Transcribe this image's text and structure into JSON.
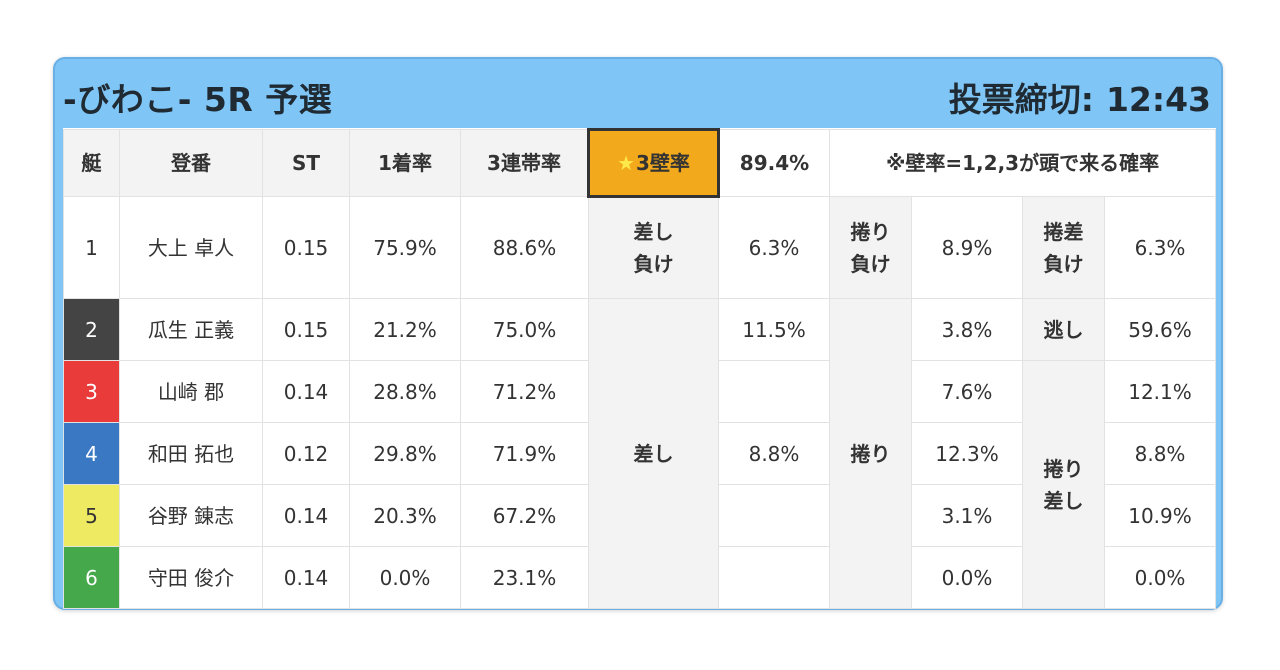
{
  "header": {
    "race_title": "-びわこ- 5R 予選",
    "deadline_label": "投票締切:",
    "deadline_time": "12:43"
  },
  "table": {
    "columns": {
      "boat": "艇",
      "name": "登番",
      "st": "ST",
      "first_rate": "1着率",
      "top3_rate": "3連帯率",
      "wall_rate_star": "★",
      "wall_rate_label": "3壁率",
      "wall_rate_value": "89.4%",
      "note": "※壁率=1,2,3が頭で来る確率"
    },
    "pattern_labels": {
      "sashi_make_1": "差し",
      "sashi_make_2": "負け",
      "makuri_make_1": "捲り",
      "makuri_make_2": "負け",
      "makurisashi_make_1": "捲差",
      "makurisashi_make_2": "負け",
      "nige": "逃し",
      "sashi": "差し",
      "makuri": "捲り",
      "makurisashi_1": "捲り",
      "makurisashi_2": "差し"
    },
    "rows": [
      {
        "boat": "1",
        "name": "大上 卓人",
        "st": "0.15",
        "first_rate": "75.9%",
        "top3_rate": "88.6%",
        "sashi_val": "6.3%",
        "makuri_val": "8.9%",
        "makurisashi_val": "6.3%"
      },
      {
        "boat": "2",
        "name": "瓜生 正義",
        "st": "0.15",
        "first_rate": "21.2%",
        "top3_rate": "75.0%",
        "sashi_val": "11.5%",
        "makuri_val": "3.8%",
        "makurisashi_val": "59.6%"
      },
      {
        "boat": "3",
        "name": "山崎 郡",
        "st": "0.14",
        "first_rate": "28.8%",
        "top3_rate": "71.2%",
        "sashi_val": "",
        "makuri_val": "7.6%",
        "makurisashi_val": "12.1%"
      },
      {
        "boat": "4",
        "name": "和田 拓也",
        "st": "0.12",
        "first_rate": "29.8%",
        "top3_rate": "71.9%",
        "sashi_val": "8.8%",
        "makuri_val": "12.3%",
        "makurisashi_val": "8.8%"
      },
      {
        "boat": "5",
        "name": "谷野 錬志",
        "st": "0.14",
        "first_rate": "20.3%",
        "top3_rate": "67.2%",
        "sashi_val": "",
        "makuri_val": "3.1%",
        "makurisashi_val": "10.9%"
      },
      {
        "boat": "6",
        "name": "守田 俊介",
        "st": "0.14",
        "first_rate": "0.0%",
        "top3_rate": "23.1%",
        "sashi_val": "",
        "makuri_val": "0.0%",
        "makurisashi_val": "0.0%"
      }
    ]
  },
  "colors": {
    "card_bg": "#7fc6f7",
    "star_cell": "#f2a91c",
    "boat_1": "#ffffff",
    "boat_2": "#444444",
    "boat_3": "#ea3b3b",
    "boat_4": "#3b78c4",
    "boat_5": "#eeea62",
    "boat_6": "#45a94b"
  }
}
